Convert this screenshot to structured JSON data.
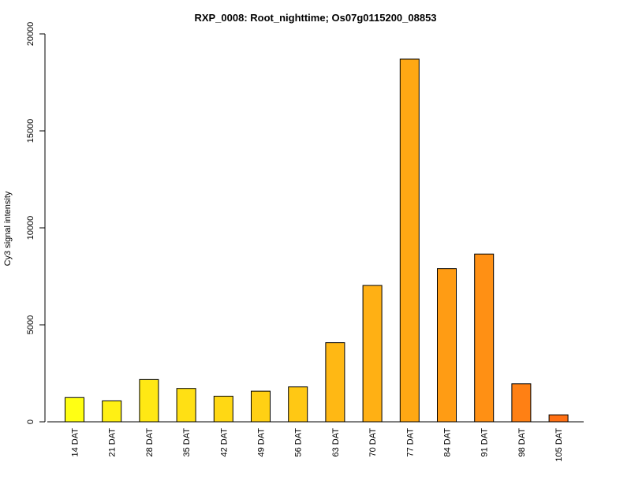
{
  "chart_data": {
    "type": "bar",
    "title": "RXP_0008: Root_nighttime; Os07g0115200_08853",
    "xlabel": "",
    "ylabel": "Cy3 signal intensity",
    "ylim": [
      0,
      20000
    ],
    "yticks": [
      "0",
      "5000",
      "10000",
      "15000",
      "20000"
    ],
    "categories": [
      "14 DAT",
      "21 DAT",
      "28 DAT",
      "35 DAT",
      "42 DAT",
      "49 DAT",
      "56 DAT",
      "63 DAT",
      "70 DAT",
      "77 DAT",
      "84 DAT",
      "91 DAT",
      "98 DAT",
      "105 DAT"
    ],
    "values": [
      1250,
      1080,
      2180,
      1720,
      1320,
      1580,
      1800,
      4080,
      7030,
      18700,
      7900,
      8650,
      1960,
      360
    ],
    "colors": [
      "#FFFF14",
      "#FFF014",
      "#FFE814",
      "#FFE014",
      "#FFD814",
      "#FFD014",
      "#FFC814",
      "#FFB814",
      "#FFB014",
      "#FFA814",
      "#FF9C14",
      "#FF9014",
      "#FF8014",
      "#FF7014"
    ],
    "grid": false,
    "legend": "none"
  }
}
